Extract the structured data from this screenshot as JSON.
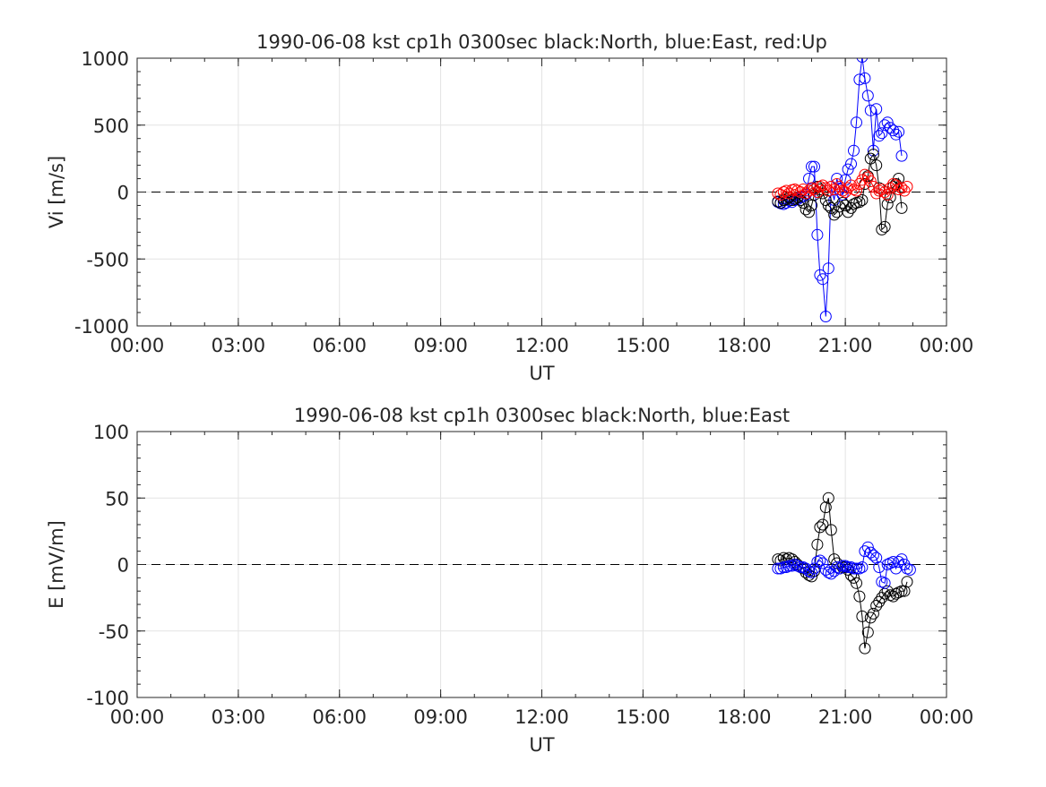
{
  "chart_data": [
    {
      "type": "line",
      "title": "1990-06-08 kst cp1h 0300sec black:North, blue:East, red:Up",
      "xlabel": "UT",
      "ylabel": "Vi [m/s]",
      "xlim": [
        0,
        24
      ],
      "ylim": [
        -1000,
        1000
      ],
      "xticks": [
        0,
        3,
        6,
        9,
        12,
        15,
        18,
        21,
        24
      ],
      "xtick_labels": [
        "00:00",
        "03:00",
        "06:00",
        "09:00",
        "12:00",
        "15:00",
        "18:00",
        "21:00",
        "00:00"
      ],
      "yticks": [
        -1000,
        -500,
        0,
        500,
        1000
      ],
      "ytick_labels": [
        "-1000",
        "-500",
        "0",
        "500",
        "1000"
      ],
      "grid": true,
      "zero_line": true,
      "series": [
        {
          "color": "#0000ff",
          "x": [
            19.0,
            19.08,
            19.17,
            19.25,
            19.33,
            19.42,
            19.5,
            19.58,
            19.67,
            19.75,
            19.83,
            19.92,
            20.0,
            20.08,
            20.17,
            20.25,
            20.33,
            20.42,
            20.5,
            20.58,
            20.67,
            20.75,
            20.83,
            20.92,
            21.0,
            21.08,
            21.17,
            21.25,
            21.33,
            21.42,
            21.5,
            21.58,
            21.67,
            21.75,
            21.83,
            21.92,
            22.0,
            22.08,
            22.17,
            22.25,
            22.33,
            22.42,
            22.5,
            22.58,
            22.67,
            22.75,
            22.83,
            22.92
          ],
          "y": [
            -75,
            -85,
            -90,
            -80,
            -65,
            -75,
            -60,
            -55,
            -40,
            -35,
            -20,
            100,
            190,
            190,
            -320,
            -620,
            -650,
            -930,
            -570,
            40,
            -60,
            100,
            20,
            -20,
            90,
            170,
            210,
            310,
            520,
            840,
            1010,
            850,
            720,
            610,
            310,
            620,
            420,
            440,
            500,
            520,
            480,
            460,
            430,
            450,
            270,
            null,
            null,
            null
          ]
        },
        {
          "color": "#000000",
          "x": [
            19.0,
            19.08,
            19.17,
            19.25,
            19.33,
            19.42,
            19.5,
            19.58,
            19.67,
            19.75,
            19.83,
            19.92,
            20.0,
            20.08,
            20.17,
            20.25,
            20.33,
            20.42,
            20.5,
            20.58,
            20.67,
            20.75,
            20.83,
            20.92,
            21.0,
            21.08,
            21.17,
            21.25,
            21.33,
            21.42,
            21.5,
            21.58,
            21.67,
            21.75,
            21.83,
            21.92,
            22.0,
            22.08,
            22.17,
            22.25,
            22.33,
            22.42,
            22.5,
            22.58,
            22.67,
            22.75,
            22.83,
            22.92
          ],
          "y": [
            -70,
            -80,
            -60,
            -55,
            -40,
            -60,
            -50,
            -40,
            -60,
            -80,
            -130,
            -150,
            -100,
            -20,
            40,
            20,
            -10,
            -60,
            -100,
            -120,
            -170,
            -150,
            -110,
            -80,
            -100,
            -150,
            -120,
            -90,
            -80,
            -75,
            -60,
            60,
            120,
            250,
            280,
            200,
            30,
            -280,
            -260,
            -90,
            -40,
            40,
            60,
            100,
            -120,
            null,
            null,
            null
          ]
        },
        {
          "color": "#ff0000",
          "x": [
            19.0,
            19.08,
            19.17,
            19.25,
            19.33,
            19.42,
            19.5,
            19.58,
            19.67,
            19.75,
            19.83,
            19.92,
            20.0,
            20.08,
            20.17,
            20.25,
            20.33,
            20.42,
            20.5,
            20.58,
            20.67,
            20.75,
            20.83,
            20.92,
            21.0,
            21.08,
            21.17,
            21.25,
            21.33,
            21.42,
            21.5,
            21.58,
            21.67,
            21.75,
            21.83,
            21.92,
            22.0,
            22.08,
            22.17,
            22.25,
            22.33,
            22.42,
            22.5,
            22.58,
            22.67,
            22.75,
            22.83,
            22.92
          ],
          "y": [
            -10,
            -20,
            0,
            10,
            -10,
            15,
            20,
            10,
            0,
            20,
            -10,
            10,
            30,
            20,
            0,
            40,
            50,
            30,
            10,
            40,
            20,
            60,
            40,
            10,
            0,
            30,
            50,
            20,
            10,
            60,
            90,
            130,
            110,
            80,
            40,
            -10,
            10,
            20,
            0,
            -20,
            30,
            60,
            50,
            20,
            30,
            10,
            40,
            null
          ]
        }
      ]
    },
    {
      "type": "line",
      "title": "1990-06-08 kst cp1h 0300sec black:North, blue:East",
      "xlabel": "UT",
      "ylabel": "E [mV/m]",
      "xlim": [
        0,
        24
      ],
      "ylim": [
        -100,
        100
      ],
      "xticks": [
        0,
        3,
        6,
        9,
        12,
        15,
        18,
        21,
        24
      ],
      "xtick_labels": [
        "00:00",
        "03:00",
        "06:00",
        "09:00",
        "12:00",
        "15:00",
        "18:00",
        "21:00",
        "00:00"
      ],
      "yticks": [
        -100,
        -50,
        0,
        50,
        100
      ],
      "ytick_labels": [
        "-100",
        "-50",
        "0",
        "50",
        "100"
      ],
      "grid": true,
      "zero_line": true,
      "series": [
        {
          "color": "#000000",
          "x": [
            19.0,
            19.08,
            19.17,
            19.25,
            19.33,
            19.42,
            19.5,
            19.58,
            19.67,
            19.75,
            19.83,
            19.92,
            20.0,
            20.08,
            20.17,
            20.25,
            20.33,
            20.42,
            20.5,
            20.58,
            20.67,
            20.75,
            20.83,
            20.92,
            21.0,
            21.08,
            21.17,
            21.25,
            21.33,
            21.42,
            21.5,
            21.58,
            21.67,
            21.75,
            21.83,
            21.92,
            22.0,
            22.08,
            22.17,
            22.25,
            22.33,
            22.42,
            22.5,
            22.58,
            22.67,
            22.75,
            22.83,
            22.92
          ],
          "y": [
            4,
            3,
            5,
            4,
            5,
            4,
            2,
            0,
            -2,
            -3,
            -6,
            -8,
            -9,
            -5,
            15,
            28,
            30,
            43,
            50,
            26,
            4,
            1,
            -3,
            -2,
            -2,
            -4,
            -8,
            -10,
            -14,
            -24,
            -39,
            -63,
            -51,
            -40,
            -37,
            -31,
            -28,
            -25,
            -22,
            -20,
            -23,
            -24,
            -22,
            -21,
            -20,
            -20,
            -13,
            null
          ]
        },
        {
          "color": "#0000ff",
          "x": [
            19.0,
            19.08,
            19.17,
            19.25,
            19.33,
            19.42,
            19.5,
            19.58,
            19.67,
            19.75,
            19.83,
            19.92,
            20.0,
            20.08,
            20.17,
            20.25,
            20.33,
            20.42,
            20.5,
            20.58,
            20.67,
            20.75,
            20.83,
            20.92,
            21.0,
            21.08,
            21.17,
            21.25,
            21.33,
            21.42,
            21.5,
            21.58,
            21.67,
            21.75,
            21.83,
            21.92,
            22.0,
            22.08,
            22.17,
            22.25,
            22.33,
            22.42,
            22.5,
            22.58,
            22.67,
            22.75,
            22.83,
            22.92
          ],
          "y": [
            -3,
            -3,
            -2,
            -2,
            -1,
            -1,
            0,
            -1,
            -2,
            -2,
            -3,
            -5,
            -6,
            -3,
            2,
            3,
            1,
            -4,
            -6,
            -7,
            -5,
            -2,
            -3,
            -1,
            -1,
            -2,
            -2,
            -3,
            -3,
            -3,
            -2,
            10,
            13,
            9,
            7,
            5,
            -2,
            -13,
            -14,
            0,
            1,
            2,
            -3,
            2,
            4,
            0,
            -3,
            -4
          ]
        }
      ]
    }
  ]
}
